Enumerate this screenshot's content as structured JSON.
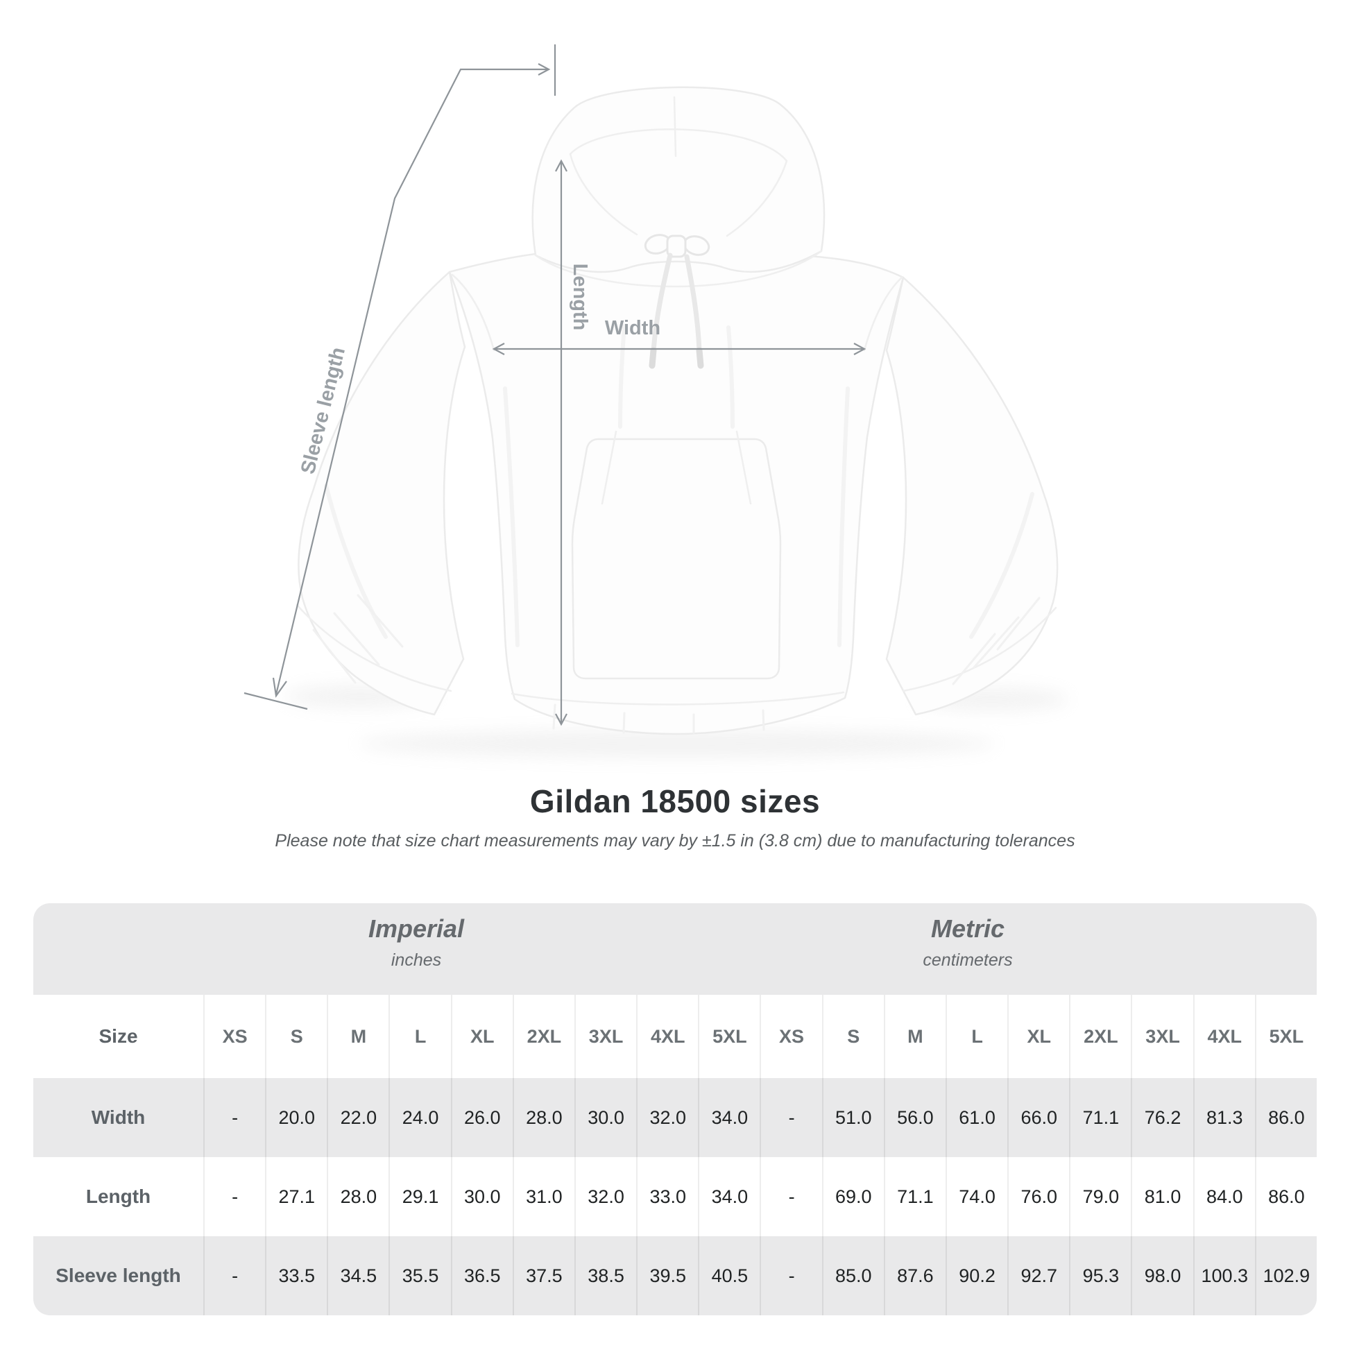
{
  "diagram": {
    "length_label": "Length",
    "width_label": "Width",
    "sleeve_label": "Sleeve length",
    "product": "white pullover hooded sweatshirt"
  },
  "heading": {
    "title": "Gildan 18500 sizes",
    "subtitle": "Please note that size chart measurements may vary by ±1.5 in (3.8 cm) due to manufacturing tolerances"
  },
  "table": {
    "groups": [
      {
        "label": "Imperial",
        "unit": "inches"
      },
      {
        "label": "Metric",
        "unit": "centimeters"
      }
    ],
    "size_header": "Size",
    "sizes": [
      "XS",
      "S",
      "M",
      "L",
      "XL",
      "2XL",
      "3XL",
      "4XL",
      "5XL"
    ],
    "rows": [
      {
        "label": "Width",
        "imperial": [
          "-",
          "20.0",
          "22.0",
          "24.0",
          "26.0",
          "28.0",
          "30.0",
          "32.0",
          "34.0"
        ],
        "metric": [
          "-",
          "51.0",
          "56.0",
          "61.0",
          "66.0",
          "71.1",
          "76.2",
          "81.3",
          "86.0"
        ]
      },
      {
        "label": "Length",
        "imperial": [
          "-",
          "27.1",
          "28.0",
          "29.1",
          "30.0",
          "31.0",
          "32.0",
          "33.0",
          "34.0"
        ],
        "metric": [
          "-",
          "69.0",
          "71.1",
          "74.0",
          "76.0",
          "79.0",
          "81.0",
          "84.0",
          "86.0"
        ]
      },
      {
        "label": "Sleeve length",
        "imperial": [
          "-",
          "33.5",
          "34.5",
          "35.5",
          "36.5",
          "37.5",
          "38.5",
          "39.5",
          "40.5"
        ],
        "metric": [
          "-",
          "85.0",
          "87.6",
          "90.2",
          "92.7",
          "95.3",
          "98.0",
          "100.3",
          "102.9"
        ]
      }
    ]
  },
  "colors": {
    "measure_line": "#8e9499",
    "measure_label": "#9aa0a5",
    "table_band": "#e9e9ea",
    "title_text": "#2e3235",
    "muted_text": "#63686c",
    "value_text": "#1f2223"
  }
}
